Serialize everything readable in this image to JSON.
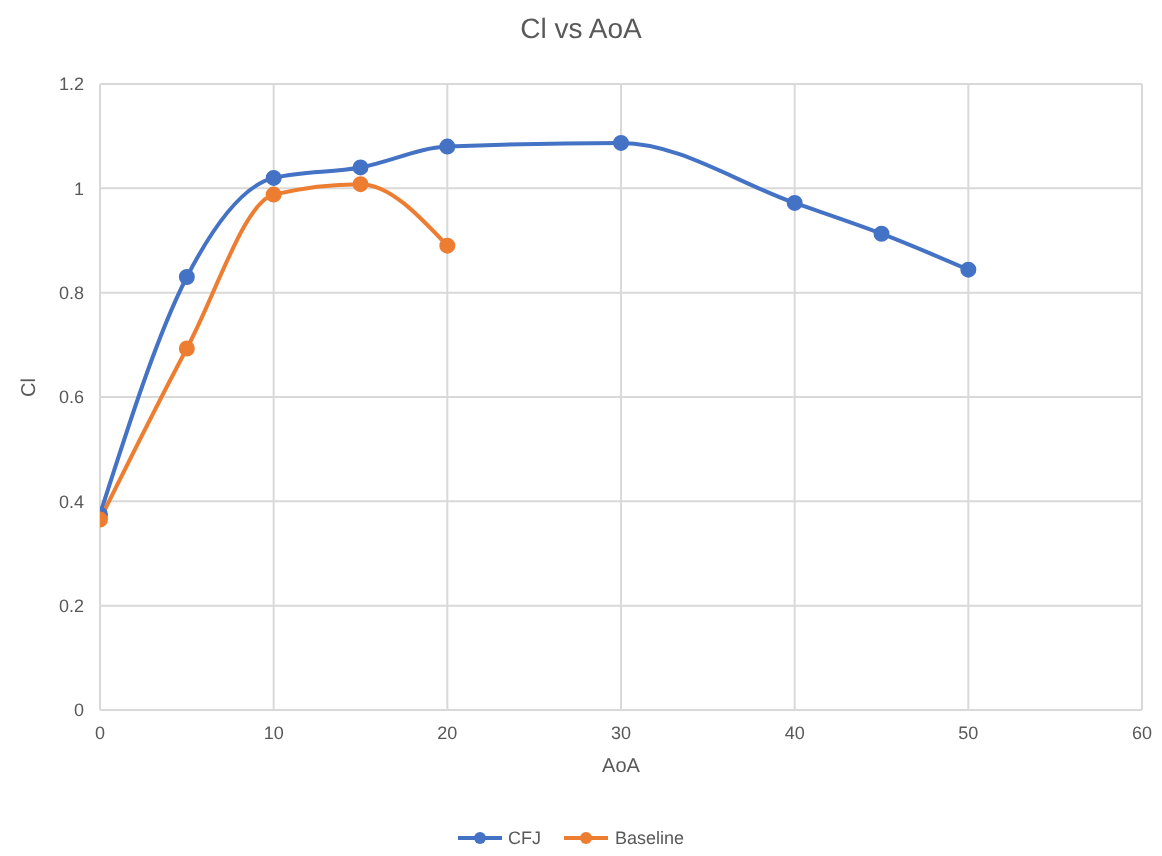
{
  "chart_data": {
    "type": "line",
    "title": "Cl vs AoA",
    "xlabel": "AoA",
    "ylabel": "Cl",
    "xlim": [
      0,
      60
    ],
    "xticks": [
      0,
      10,
      20,
      30,
      40,
      50,
      60
    ],
    "ylim": [
      0,
      1.2
    ],
    "yticks": [
      0,
      0.2,
      0.4,
      0.6,
      0.8,
      1,
      1.2
    ],
    "grid": true,
    "legend": "bottom",
    "marker": "circle",
    "line_style": "solid",
    "series": [
      {
        "name": "CFJ",
        "color": "#4472c4",
        "x": [
          0,
          5,
          10,
          15,
          20,
          30,
          40,
          45,
          50
        ],
        "values": [
          0.375,
          0.83,
          1.02,
          1.04,
          1.08,
          1.087,
          0.972,
          0.913,
          0.844
        ]
      },
      {
        "name": "Baseline",
        "color": "#ed7d31",
        "x": [
          0,
          5,
          10,
          15,
          20
        ],
        "values": [
          0.365,
          0.693,
          0.988,
          1.008,
          0.89
        ]
      }
    ]
  }
}
